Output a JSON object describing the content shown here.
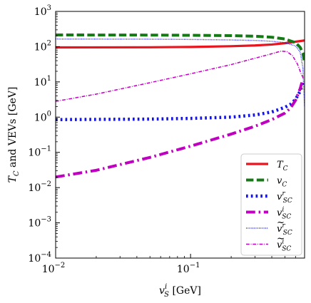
{
  "chart_data": {
    "type": "line",
    "xlabel_parts": {
      "var": "v",
      "sup": "i",
      "sub": "S",
      "unit": " [GeV]"
    },
    "ylabel_parts": {
      "var": "T",
      "sub": "C",
      "rest": " and VEVs [GeV]"
    },
    "xscale": "log",
    "yscale": "log",
    "xlim": [
      0.01,
      0.7
    ],
    "ylim": [
      0.0001,
      1000
    ],
    "x_ticks": [
      {
        "value": 0.01,
        "base": "10",
        "exp": "−2"
      },
      {
        "value": 0.1,
        "base": "10",
        "exp": "−1"
      }
    ],
    "y_ticks": [
      {
        "value": 0.0001,
        "base": "10",
        "exp": "−4"
      },
      {
        "value": 0.001,
        "base": "10",
        "exp": "−3"
      },
      {
        "value": 0.01,
        "base": "10",
        "exp": "−2"
      },
      {
        "value": 0.1,
        "base": "10",
        "exp": "−1"
      },
      {
        "value": 1,
        "base": "10",
        "exp": "0"
      },
      {
        "value": 10,
        "base": "10",
        "exp": "1"
      },
      {
        "value": 100,
        "base": "10",
        "exp": "2"
      },
      {
        "value": 1000,
        "base": "10",
        "exp": "3"
      }
    ],
    "grid": false,
    "legend_position": "lower-right",
    "series": [
      {
        "legend": {
          "var": "T",
          "sub": "C",
          "sup": "",
          "tilde": false
        },
        "color": "#e8141e",
        "style": "solid",
        "width": 3.2,
        "x": [
          0.01,
          0.05,
          0.1,
          0.2,
          0.3,
          0.4,
          0.5,
          0.6,
          0.7
        ],
        "y": [
          95,
          96,
          98,
          103,
          108,
          115,
          125,
          138,
          150
        ]
      },
      {
        "legend": {
          "var": "v",
          "sub": "C",
          "sup": "",
          "tilde": false
        },
        "color": "#157a15",
        "style": "dashed",
        "width": 4,
        "x": [
          0.01,
          0.05,
          0.1,
          0.2,
          0.3,
          0.4,
          0.5,
          0.6,
          0.65,
          0.68,
          0.7
        ],
        "y": [
          215,
          213,
          210,
          205,
          198,
          185,
          165,
          130,
          95,
          65,
          35
        ]
      },
      {
        "legend": {
          "var": "v",
          "sub": "SC",
          "sup": "r",
          "tilde": false
        },
        "color": "#1414e8",
        "style": "dotted",
        "width": 4.5,
        "x": [
          0.01,
          0.05,
          0.1,
          0.2,
          0.3,
          0.4,
          0.5,
          0.55,
          0.6,
          0.65,
          0.68
        ],
        "y": [
          0.85,
          0.88,
          0.92,
          1.0,
          1.15,
          1.4,
          1.9,
          2.3,
          3.2,
          5.5,
          10
        ]
      },
      {
        "legend": {
          "var": "v",
          "sub": "SC",
          "sup": "i",
          "tilde": false
        },
        "color": "#c000c0",
        "style": "dashdot",
        "width": 4,
        "x": [
          0.01,
          0.02,
          0.05,
          0.1,
          0.2,
          0.3,
          0.4,
          0.5,
          0.55,
          0.6,
          0.65,
          0.68
        ],
        "y": [
          0.02,
          0.031,
          0.072,
          0.15,
          0.33,
          0.55,
          0.85,
          1.3,
          1.8,
          3.0,
          6.5,
          12
        ]
      },
      {
        "legend": {
          "var": "v",
          "sub": "SC",
          "sup": "r",
          "tilde": true
        },
        "color": "#1414e8",
        "style": "dotted",
        "width": 1.5,
        "x": [
          0.01,
          0.05,
          0.1,
          0.2,
          0.3,
          0.4,
          0.5,
          0.6,
          0.65,
          0.68,
          0.7
        ],
        "y": [
          165,
          163,
          160,
          155,
          150,
          142,
          130,
          105,
          70,
          25,
          2
        ]
      },
      {
        "legend": {
          "var": "v",
          "sub": "SC",
          "sup": "i",
          "tilde": true
        },
        "color": "#c000c0",
        "style": "dashdot",
        "width": 1.5,
        "x": [
          0.01,
          0.02,
          0.05,
          0.1,
          0.2,
          0.3,
          0.4,
          0.47,
          0.52,
          0.57,
          0.62,
          0.66,
          0.69
        ],
        "y": [
          2.8,
          4.5,
          9.5,
          17,
          31,
          47,
          63,
          75,
          72,
          55,
          32,
          17,
          12
        ]
      }
    ]
  }
}
